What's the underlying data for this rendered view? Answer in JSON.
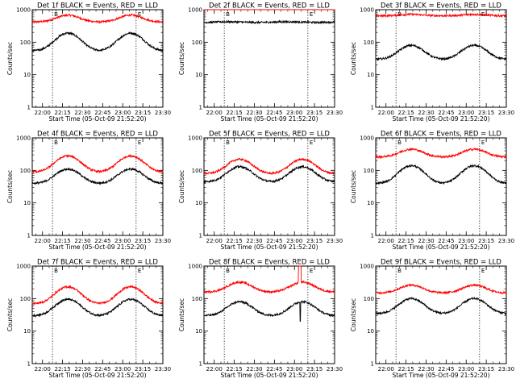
{
  "chart_data": {
    "type": "line",
    "y_scale": "log",
    "ylim": [
      1,
      1000
    ],
    "xlim": [
      "21:52",
      "23:30"
    ],
    "grid": false,
    "legend": "none",
    "y_tick_labels": [
      "1",
      "10",
      "100",
      "1000"
    ],
    "x_tick_labels": [
      "22:00",
      "22:15",
      "22:30",
      "22:45",
      "23:00",
      "23:15",
      "23:30"
    ],
    "xlabel": "Start Time (05-Oct-09 21:52:20)",
    "ylabel": "Counts/sec",
    "marker_b": "B",
    "marker_e": "E",
    "colors": {
      "events": "#000000",
      "lld": "#ff0000"
    },
    "panels": [
      {
        "title": "Det 1f BLACK = Events, RED = LLD",
        "row": 0,
        "col": 0,
        "events": {
          "base": 55,
          "peak": 190
        },
        "lld": {
          "base": 420,
          "peak": 680
        },
        "mode": "wave"
      },
      {
        "title": "Det 2f BLACK = Events, RED = LLD",
        "row": 0,
        "col": 1,
        "events": {
          "base": 400,
          "peak": 430
        },
        "lld": {
          "base": 1050,
          "peak": 1080
        },
        "mode": "flat"
      },
      {
        "title": "Det 3f BLACK = Events, RED = LLD",
        "row": 0,
        "col": 2,
        "events": {
          "base": 30,
          "peak": 80
        },
        "lld": {
          "base": 650,
          "peak": 720
        },
        "mode": "wave"
      },
      {
        "title": "Det 4f BLACK = Events, RED = LLD",
        "row": 1,
        "col": 0,
        "events": {
          "base": 40,
          "peak": 110
        },
        "lld": {
          "base": 90,
          "peak": 280
        },
        "mode": "wave"
      },
      {
        "title": "Det 5f BLACK = Events, RED = LLD",
        "row": 1,
        "col": 1,
        "events": {
          "base": 45,
          "peak": 130
        },
        "lld": {
          "base": 80,
          "peak": 220
        },
        "mode": "wave"
      },
      {
        "title": "Det 6f BLACK = Events, RED = LLD",
        "row": 1,
        "col": 2,
        "events": {
          "base": 40,
          "peak": 140
        },
        "lld": {
          "base": 260,
          "peak": 450
        },
        "mode": "wave"
      },
      {
        "title": "Det 7f BLACK = Events, RED = LLD",
        "row": 2,
        "col": 0,
        "events": {
          "base": 30,
          "peak": 95
        },
        "lld": {
          "base": 70,
          "peak": 230
        },
        "mode": "wave"
      },
      {
        "title": "Det 8f BLACK = Events, RED = LLD",
        "row": 2,
        "col": 1,
        "events": {
          "base": 30,
          "peak": 80
        },
        "lld": {
          "base": 160,
          "peak": 320
        },
        "mode": "wave8"
      },
      {
        "title": "Det 9f BLACK = Events, RED = LLD",
        "row": 2,
        "col": 2,
        "events": {
          "base": 35,
          "peak": 100
        },
        "lld": {
          "base": 150,
          "peak": 260
        },
        "mode": "wave"
      }
    ]
  }
}
